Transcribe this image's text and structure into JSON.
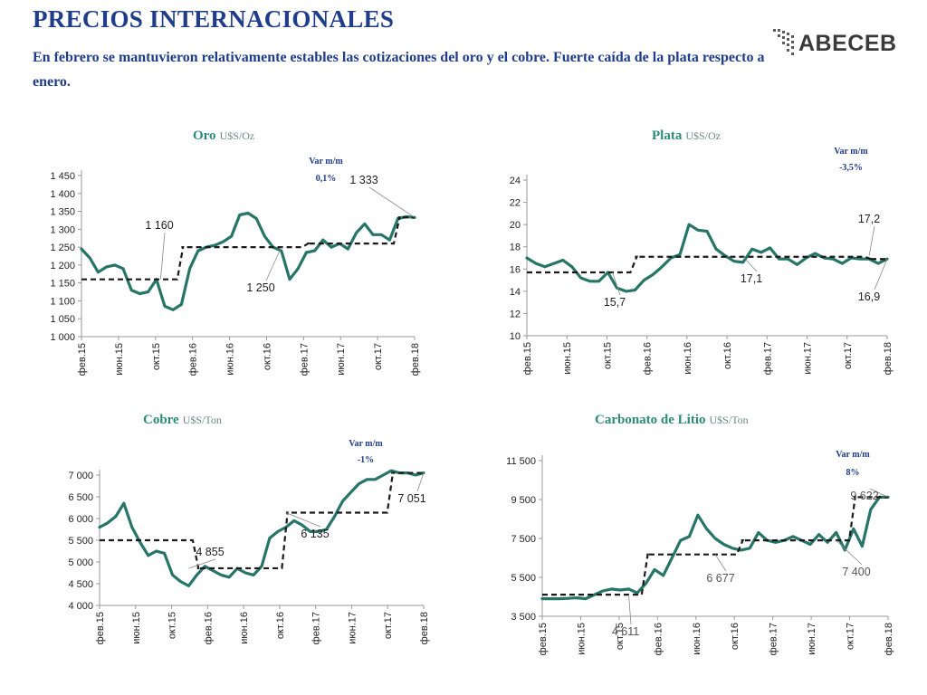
{
  "header": {
    "title": "PRECIOS INTERNACIONALES",
    "subtitle": "En febrero se mantuvieron relativamente estables las cotizaciones del oro y el cobre. Fuerte caída de la plata respecto a enero.",
    "logo_text": "ABECEB"
  },
  "colors": {
    "title": "#1f3d8a",
    "series_line": "#277566",
    "average_line": "#1a1a1a",
    "chart_title": "#2e8b78"
  },
  "chart_data": [
    {
      "type": "line",
      "name": "Oro",
      "unit": "U$S/Oz",
      "var_label": "Var m/m",
      "var_value": "0,1%",
      "x_ticks": [
        "фев.15",
        "июн.15",
        "окт.15",
        "фев.16",
        "июн.16",
        "окт.16",
        "фев.17",
        "июн.17",
        "окт.17",
        "фев.18"
      ],
      "y_ticks": [
        "1 000",
        "1 050",
        "1 100",
        "1 150",
        "1 200",
        "1 250",
        "1 300",
        "1 350",
        "1 400",
        "1 450"
      ],
      "ylim": [
        1000,
        1450
      ],
      "xlim": [
        0,
        36
      ],
      "series": [
        {
          "values": [
            1245,
            1220,
            1180,
            1195,
            1200,
            1190,
            1130,
            1120,
            1125,
            1160,
            1085,
            1075,
            1090,
            1190,
            1240,
            1250,
            1255,
            1265,
            1280,
            1340,
            1345,
            1330,
            1280,
            1250,
            1240,
            1160,
            1190,
            1235,
            1240,
            1270,
            1250,
            1260,
            1245,
            1290,
            1315,
            1285,
            1285,
            1270,
            1330,
            1335,
            1333
          ]
        },
        {
          "values": [
            1160,
            1160,
            1160,
            1160,
            1160,
            1160,
            1160,
            1160,
            1160,
            1160,
            1160,
            1160,
            1250,
            1250,
            1250,
            1250,
            1250,
            1250,
            1250,
            1250,
            1250,
            1250,
            1250,
            1250,
            1250,
            1250,
            1250,
            1260,
            1260,
            1260,
            1260,
            1260,
            1260,
            1260,
            1260,
            1260,
            1260,
            1260,
            1333,
            1333,
            1333
          ]
        }
      ],
      "annotations": [
        {
          "text": "1 160",
          "x": 9.5,
          "y": 1160
        },
        {
          "text": "1 250",
          "x": 24,
          "y": 1250
        },
        {
          "text": "1 333",
          "x": 40,
          "y": 1333
        }
      ]
    },
    {
      "type": "line",
      "name": "Plata",
      "unit": "U$S/Oz",
      "var_label": "Var m/m",
      "var_value": "-3,5%",
      "x_ticks": [
        "фев.15",
        "июн.15",
        "окт.15",
        "фев.16",
        "июн.16",
        "окт.16",
        "фев.17",
        "июн.17",
        "окт.17",
        "фев.18"
      ],
      "y_ticks": [
        "10",
        "12",
        "14",
        "16",
        "18",
        "20",
        "22",
        "24"
      ],
      "ylim": [
        10,
        24
      ],
      "xlim": [
        0,
        36
      ],
      "series": [
        {
          "values": [
            17.0,
            16.5,
            16.2,
            16.5,
            16.8,
            16.2,
            15.2,
            14.9,
            14.9,
            15.7,
            14.3,
            14.0,
            14.1,
            15.0,
            15.5,
            16.2,
            17.0,
            17.3,
            20.0,
            19.5,
            19.4,
            17.8,
            17.2,
            16.7,
            16.6,
            17.8,
            17.5,
            17.9,
            16.9,
            16.9,
            16.4,
            17.0,
            17.4,
            17.0,
            16.9,
            16.5,
            17.0,
            16.9,
            16.9,
            16.5,
            16.9
          ]
        },
        {
          "values": [
            15.7,
            15.7,
            15.7,
            15.7,
            15.7,
            15.7,
            15.7,
            15.7,
            15.7,
            15.7,
            15.7,
            15.7,
            17.1,
            17.1,
            17.1,
            17.1,
            17.1,
            17.1,
            17.1,
            17.1,
            17.1,
            17.1,
            17.1,
            17.1,
            17.1,
            17.1,
            17.1,
            17.1,
            17.1,
            17.1,
            17.1,
            17.1,
            17.1,
            17.1,
            17.1,
            17.1,
            17.1,
            17.1,
            16.9,
            16.9,
            16.9
          ]
        }
      ],
      "annotations": [
        {
          "text": "15,7",
          "x": 9.5,
          "y": 15.7
        },
        {
          "text": "17,1",
          "x": 24,
          "y": 17.1
        },
        {
          "text": "17,2",
          "x": 38,
          "y": 17.2
        },
        {
          "text": "16,9",
          "x": 40,
          "y": 16.9
        }
      ]
    },
    {
      "type": "line",
      "name": "Cobre",
      "unit": "U$S/Ton",
      "var_label": "Var m/m",
      "var_value": "-1%",
      "x_ticks": [
        "фев.15",
        "июн.15",
        "окт.15",
        "фев.16",
        "июн.16",
        "окт.16",
        "фев.17",
        "июн.17",
        "окт.17",
        "фев.18"
      ],
      "y_ticks": [
        "4 000",
        "4 500",
        "5 000",
        "5 500",
        "6 000",
        "6 500",
        "7 000"
      ],
      "ylim": [
        4000,
        7000
      ],
      "xlim": [
        0,
        36
      ],
      "series": [
        {
          "values": [
            5800,
            5900,
            6050,
            6350,
            5800,
            5450,
            5150,
            5250,
            5200,
            4700,
            4550,
            4450,
            4700,
            4900,
            4800,
            4700,
            4650,
            4850,
            4750,
            4700,
            4900,
            5550,
            5700,
            5800,
            5950,
            5850,
            5700,
            5700,
            5750,
            6050,
            6400,
            6600,
            6800,
            6900,
            6900,
            7000,
            7100,
            7050,
            7051,
            7000,
            7051
          ]
        },
        {
          "values": [
            5500,
            5500,
            5500,
            5500,
            5500,
            5500,
            5500,
            5500,
            5500,
            5500,
            5500,
            5500,
            4855,
            4855,
            4855,
            4855,
            4855,
            4855,
            4855,
            4855,
            4855,
            4855,
            4855,
            6135,
            6135,
            6135,
            6135,
            6135,
            6135,
            6135,
            6135,
            6135,
            6135,
            6135,
            6135,
            6135,
            7051,
            7051,
            7051,
            7051,
            7051
          ]
        }
      ],
      "annotations": [
        {
          "text": "4 855",
          "x": 11,
          "y": 4855
        },
        {
          "text": "6 135",
          "x": 23,
          "y": 6135
        },
        {
          "text": "7 051",
          "x": 40,
          "y": 7051
        }
      ]
    },
    {
      "type": "line",
      "name": "Carbonato de Litio",
      "unit": "U$S/Ton",
      "var_label": "Var m/m",
      "var_value": "8%",
      "x_ticks": [
        "фев.15",
        "июн.15",
        "окт.15",
        "фев.16",
        "июн.16",
        "окт.16",
        "фев.17",
        "июн.17",
        "окт.17",
        "фев.18"
      ],
      "y_ticks": [
        "3 500",
        "5 500",
        "7 500",
        "9 500",
        "11 500"
      ],
      "ylim": [
        3500,
        11500
      ],
      "xlim": [
        0,
        36
      ],
      "series": [
        {
          "values": [
            4400,
            4400,
            4400,
            4420,
            4450,
            4400,
            4600,
            4800,
            4900,
            4850,
            4900,
            4700,
            5200,
            5900,
            5600,
            6500,
            7400,
            7600,
            8700,
            8000,
            7500,
            7200,
            7000,
            6900,
            7000,
            7800,
            7400,
            7300,
            7400,
            7600,
            7400,
            7200,
            7700,
            7300,
            7800,
            6900,
            8000,
            7100,
            9000,
            9622,
            9622
          ]
        },
        {
          "values": [
            4611,
            4611,
            4611,
            4611,
            4611,
            4611,
            4611,
            4611,
            4611,
            4611,
            4611,
            4611,
            6677,
            6677,
            6677,
            6677,
            6677,
            6677,
            6677,
            6677,
            6677,
            6677,
            6677,
            7400,
            7400,
            7400,
            7400,
            7400,
            7400,
            7400,
            7400,
            7400,
            7400,
            7400,
            7400,
            7400,
            9622,
            9622,
            9622,
            9622,
            9622
          ]
        }
      ],
      "annotations": [
        {
          "text": "4 611",
          "x": 10,
          "y": 4611
        },
        {
          "text": "6 677",
          "x": 20,
          "y": 6677
        },
        {
          "text": "7 400",
          "x": 34,
          "y": 7400
        },
        {
          "text": "9 622",
          "x": 40,
          "y": 9622
        }
      ]
    }
  ]
}
